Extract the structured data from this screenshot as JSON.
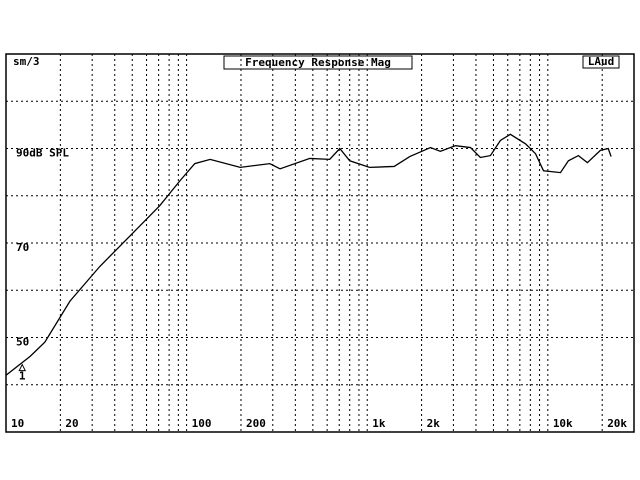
{
  "chart_data": {
    "type": "line",
    "title": "Frequency Response Mag",
    "corner_left": "sm/3",
    "corner_right": "LAud",
    "xscale": "log",
    "xlim": [
      10,
      30000
    ],
    "ylim": [
      30,
      110
    ],
    "xticks": [
      10,
      20,
      100,
      200,
      {
        "value": 1000,
        "label": "1k"
      },
      {
        "value": 2000,
        "label": "2k"
      },
      {
        "value": 10000,
        "label": "10k"
      },
      {
        "value": 20000,
        "label": "20k"
      }
    ],
    "xgrid": [
      20,
      30,
      40,
      50,
      60,
      70,
      80,
      90,
      100,
      200,
      300,
      400,
      500,
      600,
      700,
      800,
      900,
      1000,
      2000,
      3000,
      4000,
      5000,
      6000,
      7000,
      8000,
      9000,
      10000,
      20000
    ],
    "yticks": [
      {
        "value": 90,
        "label": "90dB SPL"
      },
      70,
      50
    ],
    "ygrid": [
      40,
      50,
      60,
      70,
      80,
      90,
      100
    ],
    "color": "#000000",
    "x": [
      10,
      13.6,
      16.4,
      22.6,
      33,
      48.6,
      71,
      92,
      111,
      135,
      198,
      289,
      329,
      481,
      620,
      705,
      800,
      1030,
      1410,
      1720,
      2240,
      2540,
      3080,
      3730,
      4230,
      4810,
      5460,
      6200,
      7520,
      8550,
      9460,
      11750,
      13000,
      14770,
      16560,
      19540,
      21600,
      22400
    ],
    "values": [
      42,
      46,
      49,
      57.7,
      65,
      71.5,
      77.9,
      83.2,
      86.8,
      87.7,
      86,
      86.8,
      85.7,
      87.9,
      87.7,
      90,
      87.4,
      86,
      86.2,
      88.3,
      90.2,
      89.4,
      90.6,
      90.2,
      88.1,
      88.5,
      91.7,
      93,
      91,
      88.9,
      85.3,
      84.9,
      87.4,
      88.5,
      87,
      89.6,
      90,
      88.3
    ],
    "marker": {
      "x": 12.3,
      "y": 43,
      "label": "1"
    }
  }
}
